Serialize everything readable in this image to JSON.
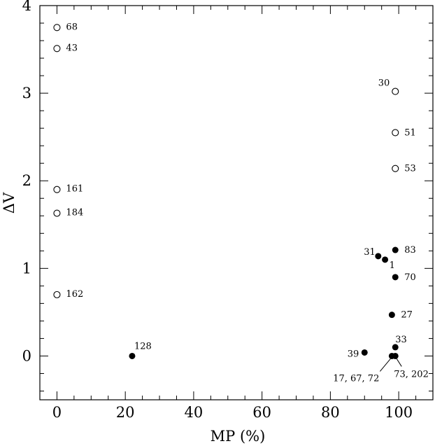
{
  "chart_data": {
    "type": "scatter",
    "xlabel": "MP (%)",
    "ylabel": "ΔV",
    "xlim": [
      -5,
      110
    ],
    "ylim": [
      -0.5,
      4
    ],
    "x_ticks": [
      0,
      20,
      40,
      60,
      80,
      100
    ],
    "x_tick_labels": [
      "0",
      "20",
      "40",
      "60",
      "80",
      "100"
    ],
    "y_ticks": [
      0,
      1,
      2,
      3,
      4
    ],
    "y_tick_labels": [
      "0",
      "1",
      "2",
      "3",
      "4"
    ],
    "grid": false,
    "series": [
      {
        "marker": "open-circle",
        "points": [
          {
            "x": 0,
            "y": 3.75,
            "label": "68"
          },
          {
            "x": 0,
            "y": 3.51,
            "label": "43"
          },
          {
            "x": 0,
            "y": 1.9,
            "label": "161"
          },
          {
            "x": 0,
            "y": 1.63,
            "label": "184"
          },
          {
            "x": 0,
            "y": 0.7,
            "label": "162"
          },
          {
            "x": 99,
            "y": 3.02,
            "label": "30"
          },
          {
            "x": 99,
            "y": 2.55,
            "label": "51"
          },
          {
            "x": 99,
            "y": 2.14,
            "label": "53"
          }
        ]
      },
      {
        "marker": "filled-circle",
        "points": [
          {
            "x": 22,
            "y": 0.0,
            "label": "128"
          },
          {
            "x": 94,
            "y": 1.14,
            "label": "31"
          },
          {
            "x": 96,
            "y": 1.1,
            "label": "1"
          },
          {
            "x": 99,
            "y": 1.21,
            "label": "83"
          },
          {
            "x": 99,
            "y": 0.9,
            "label": "70"
          },
          {
            "x": 98,
            "y": 0.47,
            "label": "27"
          },
          {
            "x": 99,
            "y": 0.1,
            "label": "33"
          },
          {
            "x": 90,
            "y": 0.04,
            "label": "39"
          },
          {
            "x": 98,
            "y": 0.0,
            "label": "17, 67, 72"
          },
          {
            "x": 99,
            "y": 0.0,
            "label": "73, 202"
          }
        ]
      }
    ]
  }
}
